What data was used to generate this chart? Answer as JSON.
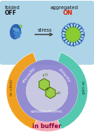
{
  "top_box_color": "#aed4e8",
  "on_color": "#dd2200",
  "arrow_color": "#444444",
  "ring_outer_color_left": "#f0a020",
  "ring_outer_color_right": "#55c8b0",
  "ring_outer_color_bottom": "#f5a8b8",
  "ring_mid_color": "#8880cc",
  "ring_inner_color": "#c8c8e0",
  "molecule_color": "#99cc44",
  "mol_edge_color": "#446600",
  "text_viscosity": "viscosity",
  "text_polarity": "polarity",
  "text_solvatochromic": "solvatochromic",
  "text_in_clinic": "in clinic",
  "text_in_cell": "in cell",
  "text_in_buffer": "in buffer",
  "bg_color": "#ffffff",
  "protein_blue_dark": "#2255aa",
  "protein_blue_mid": "#4488cc",
  "protein_blue_light": "#66aadd",
  "agg_green": "#88cc22",
  "agg_blue": "#1144aa"
}
